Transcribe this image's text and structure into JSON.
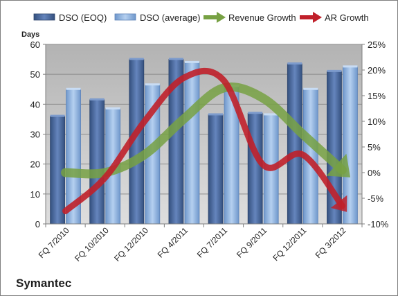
{
  "chart_data": {
    "type": "bar",
    "categories": [
      "FQ 7/2010",
      "FQ 10/2010",
      "FQ 12/2010",
      "FQ 4/2011",
      "FQ 7/2011",
      "FQ 9/2011",
      "FQ 12/2011",
      "FQ 3/2012"
    ],
    "y_axis_left": {
      "label": "Days",
      "ylim": [
        0,
        60
      ],
      "ticks": [
        "0",
        "10",
        "20",
        "30",
        "40",
        "50",
        "60"
      ]
    },
    "y_axis_right": {
      "ylim": [
        -10,
        25
      ],
      "ticks": [
        "-10%",
        "-5%",
        "0%",
        "5%",
        "10%",
        "15%",
        "20%",
        "25%"
      ]
    },
    "series": [
      {
        "name": "DSO (EOQ)",
        "type": "bar",
        "axis": "left",
        "values": [
          36,
          41.5,
          55,
          55,
          36.5,
          37,
          53.5,
          51
        ]
      },
      {
        "name": "DSO (average)",
        "type": "bar",
        "axis": "left",
        "values": [
          45,
          38.5,
          46.5,
          54,
          46,
          36.5,
          45,
          52.5
        ]
      },
      {
        "name": "Revenue Growth",
        "type": "arrow-line",
        "axis": "right",
        "values": [
          0,
          0,
          3.5,
          10.5,
          16.5,
          14.5,
          7.5,
          0.5
        ]
      },
      {
        "name": "AR Growth",
        "type": "arrow-line",
        "axis": "right",
        "values": [
          -7.5,
          -1,
          10,
          18.5,
          18,
          1.5,
          3.5,
          -6.5
        ]
      }
    ],
    "legend": {
      "position": "top"
    },
    "grid": true,
    "colors": {
      "bar_eoq": "#4f6fa3",
      "bar_avg": "#8db3e2",
      "revenue": "#77a143",
      "ar": "#c0202a",
      "plot_bg": "#c6c6c6"
    }
  },
  "company": "Symantec"
}
